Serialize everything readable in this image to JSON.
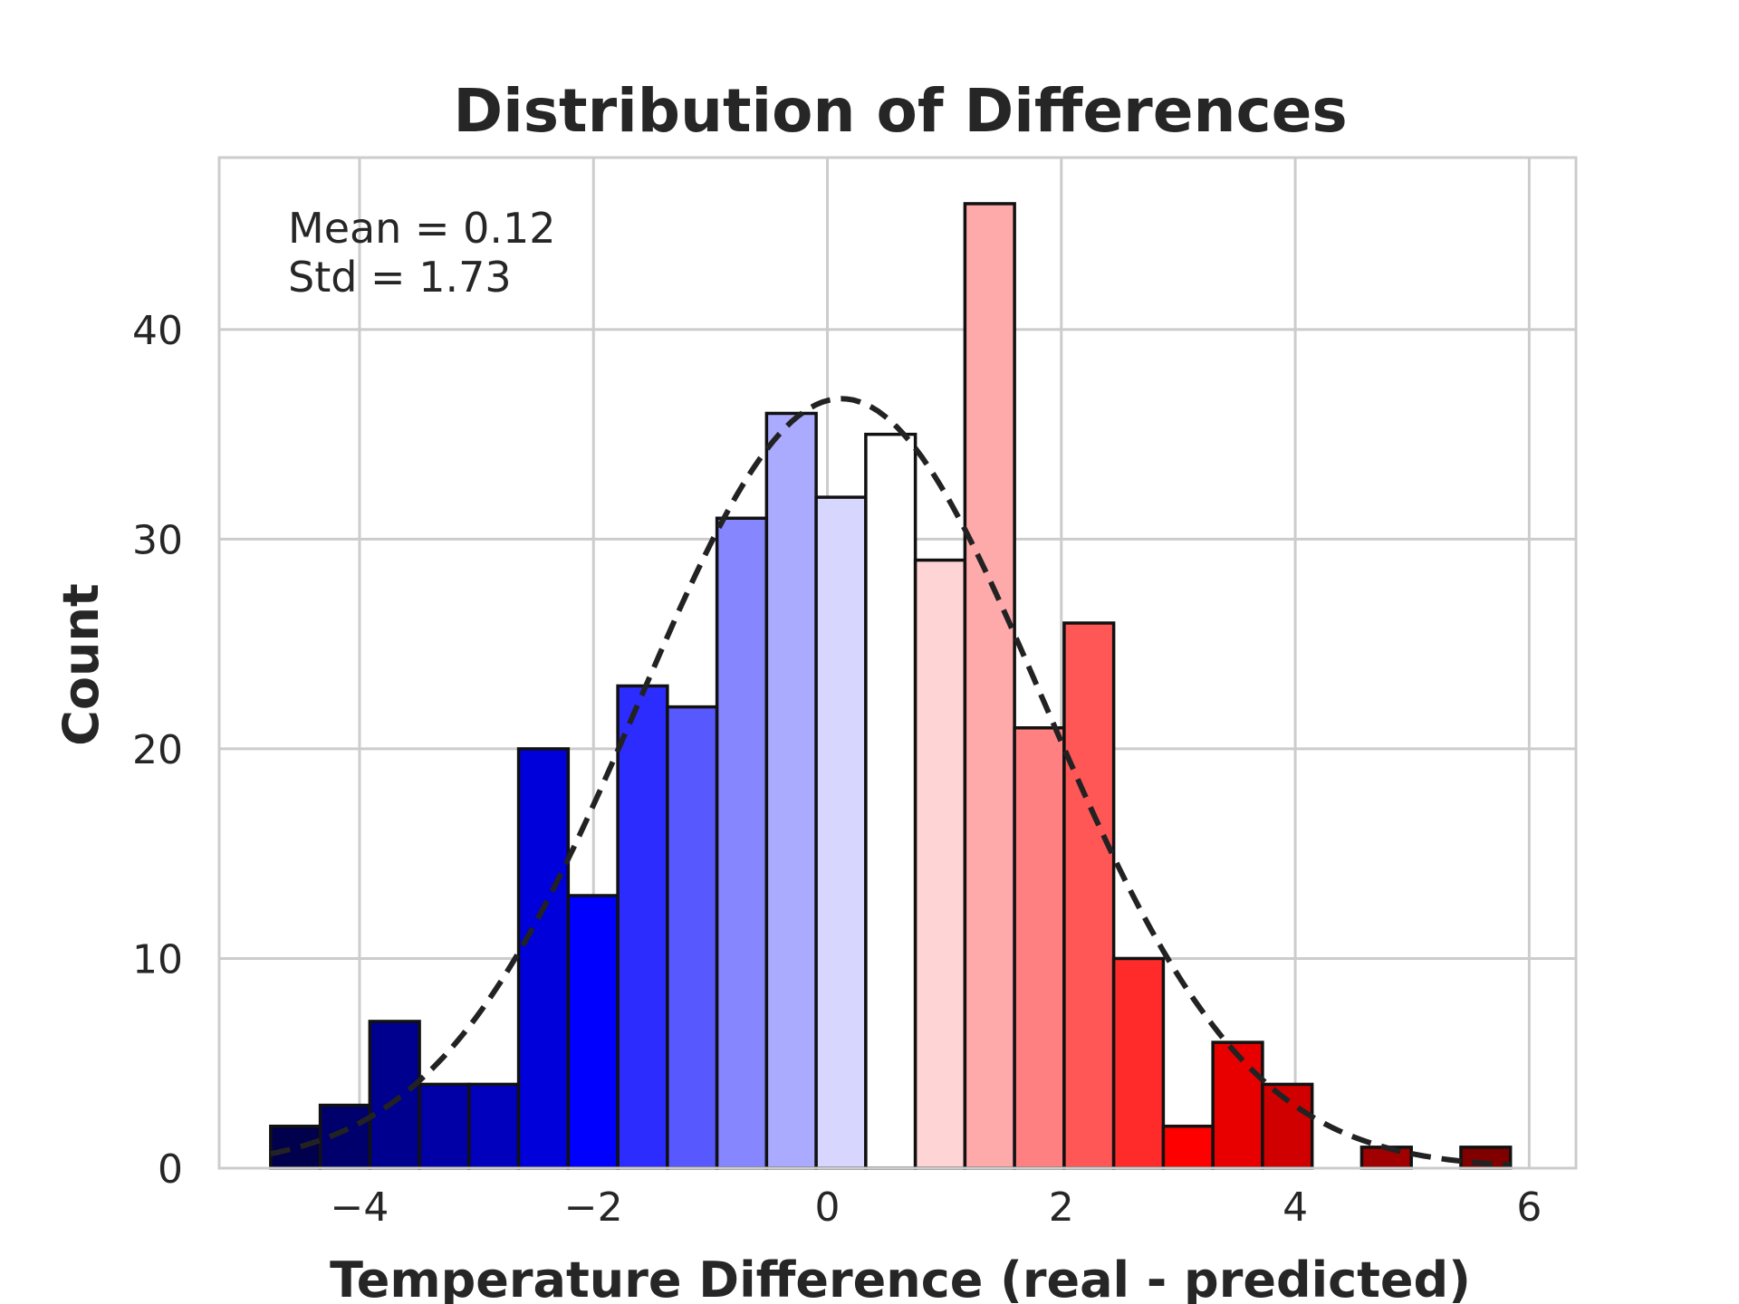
{
  "chart_data": {
    "type": "bar",
    "title": "Distribution of Differences",
    "xlabel": "Temperature Difference (real - predicted)",
    "ylabel": "Count",
    "xlim": [
      -5.2,
      6.4
    ],
    "ylim": [
      0,
      48.2
    ],
    "xticks": [
      -4,
      -2,
      0,
      2,
      4,
      6
    ],
    "xtick_labels": [
      "−4",
      "−2",
      "0",
      "2",
      "4",
      "6"
    ],
    "yticks": [
      0,
      10,
      20,
      30,
      40
    ],
    "ytick_labels": [
      "0",
      "10",
      "20",
      "30",
      "40"
    ],
    "grid": true,
    "bins": {
      "edges": [
        -4.76,
        -4.336,
        -3.912,
        -3.488,
        -3.064,
        -2.64,
        -2.216,
        -1.792,
        -1.368,
        -0.944,
        -0.52,
        -0.096,
        0.328,
        0.752,
        1.176,
        1.6,
        2.024,
        2.448,
        2.872,
        3.296,
        3.72,
        4.144,
        4.568,
        4.992,
        5.416,
        5.84
      ],
      "counts": [
        2,
        3,
        7,
        4,
        4,
        20,
        13,
        23,
        22,
        31,
        36,
        32,
        35,
        29,
        46,
        21,
        26,
        10,
        2,
        6,
        4,
        0,
        1,
        0,
        1
      ],
      "colors": [
        "#00004c",
        "#00006d",
        "#00008e",
        "#0000a6",
        "#0000bd",
        "#0000da",
        "#0000ff",
        "#2c2cff",
        "#5858ff",
        "#8686ff",
        "#aaaaff",
        "#d6d6ff",
        "#ffffff",
        "#ffd4d4",
        "#ffaaaa",
        "#ff8080",
        "#ff5656",
        "#ff2a2a",
        "#ff0000",
        "#e80000",
        "#d00000",
        "#b80000",
        "#a00000",
        "#8c0000",
        "#800000"
      ]
    },
    "fit_curve": {
      "type": "normal",
      "mean": 0.12,
      "std": 1.73,
      "peak_count": 36.7,
      "style": "dashed",
      "color": "#222222"
    },
    "annotation": [
      "Mean = 0.12",
      "Std = 1.73"
    ]
  }
}
